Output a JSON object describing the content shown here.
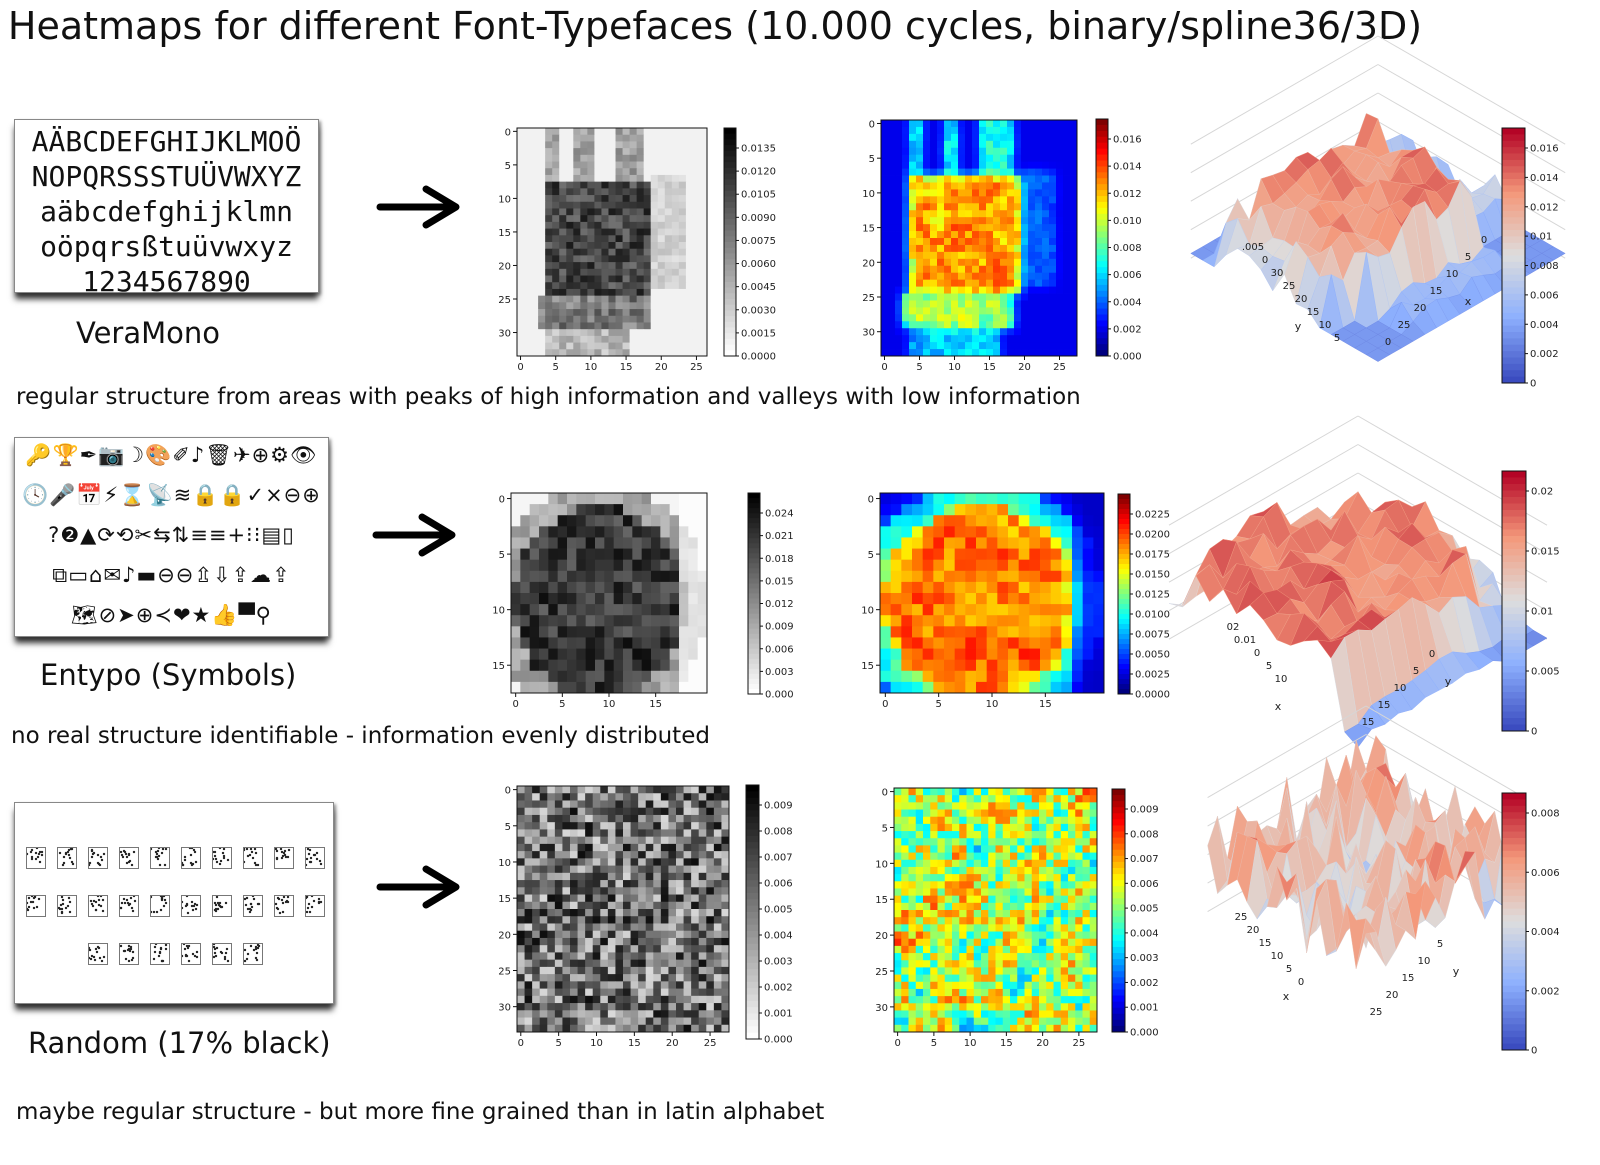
{
  "title": "Heatmaps for different Font-Typefaces (10.000 cycles, binary/spline36/3D)",
  "colors": {
    "jet": [
      "#00007f",
      "#0000ff",
      "#007fff",
      "#00ffff",
      "#7fff7f",
      "#ffff00",
      "#ff7f00",
      "#ff0000",
      "#7f0000"
    ],
    "coolwarm": [
      "#3b4cc0",
      "#8db0fe",
      "#dddddd",
      "#f4987a",
      "#b40426"
    ]
  },
  "rows": [
    {
      "name": "VeraMono",
      "caption": "regular structure from areas with peaks of high information and valleys with low information",
      "specimen_type": "latin",
      "specimen_lines": [
        "AÄBCDEFGHIJKLMOÖ",
        "NOPQRSSSTUÜVWXYZ",
        "aäbcdefghijklmn",
        "oöpqrsßtuüvwxyz",
        "1234567890"
      ],
      "chart_data": [
        {
          "type": "heatmap",
          "colormap": "gray_r",
          "rows": 34,
          "cols": 27,
          "xticks": [
            0,
            5,
            10,
            15,
            20,
            25
          ],
          "yticks": [
            0,
            5,
            10,
            15,
            20,
            25,
            30
          ],
          "colorbar_ticks": [
            "0.0135",
            "0.0120",
            "0.0105",
            "0.0090",
            "0.0075",
            "0.0060",
            "0.0045",
            "0.0030",
            "0.0015",
            "0.0000"
          ],
          "vmax": 0.0135
        },
        {
          "type": "heatmap",
          "colormap": "jet",
          "rows": 34,
          "cols": 28,
          "xticks": [
            0,
            5,
            10,
            15,
            20,
            25
          ],
          "yticks": [
            0,
            5,
            10,
            15,
            20,
            25,
            30
          ],
          "colorbar_ticks": [
            "0.016",
            "0.014",
            "0.012",
            "0.010",
            "0.008",
            "0.006",
            "0.004",
            "0.002",
            "0.000"
          ],
          "vmax": 0.016
        },
        {
          "type": "surface3d",
          "colormap": "coolwarm",
          "axis_tick_labels": [
            ".005",
            "0",
            "30",
            "25",
            "20",
            "15",
            "10",
            "5",
            "0",
            "25",
            "20",
            "15",
            "10",
            "5",
            "0"
          ],
          "axis_labels": [
            "y",
            "x"
          ],
          "colorbar_ticks": [
            "0.016",
            "0.014",
            "0.012",
            "0.01",
            "0.008",
            "0.006",
            "0.004",
            "0.002",
            "0"
          ]
        }
      ]
    },
    {
      "name": "Entypo (Symbols)",
      "caption": "no real structure identifiable - information evenly distributed",
      "specimen_type": "symbols",
      "specimen_lines": [
        "🔑🏆✒📷☽🎨✐♪🗑✈⊕⚙👁",
        "🕓🎤📅⚡⌛📡≋🔒🔒✓×⊖⊕",
        "?❷▲⟳⟲✂⇆⇅≡≡+⁝⁝▤▯",
        "⧉▭⌂✉♪▬⊖⊖⇫⇩⇪☁⇪",
        "🗺⊘➤⊕≺❤★👍▀⚲"
      ],
      "chart_data": [
        {
          "type": "heatmap",
          "colormap": "gray_r",
          "rows": 18,
          "cols": 21,
          "xticks": [
            0,
            5,
            10,
            15
          ],
          "yticks": [
            0,
            5,
            10,
            15
          ],
          "colorbar_ticks": [
            "0.024",
            "0.021",
            "0.018",
            "0.015",
            "0.012",
            "0.009",
            "0.006",
            "0.003",
            "0.000"
          ],
          "vmax": 0.024
        },
        {
          "type": "heatmap",
          "colormap": "jet",
          "rows": 18,
          "cols": 21,
          "xticks": [
            0,
            5,
            10,
            15
          ],
          "yticks": [
            0,
            5,
            10,
            15
          ],
          "colorbar_ticks": [
            "0.0225",
            "0.0200",
            "0.0175",
            "0.0150",
            "0.0125",
            "0.0100",
            "0.0075",
            "0.0050",
            "0.0025",
            "0.0000"
          ],
          "vmax": 0.0225
        },
        {
          "type": "surface3d",
          "colormap": "coolwarm",
          "axis_tick_labels": [
            "02",
            "0.01",
            "0",
            "5",
            "10",
            "15",
            "15",
            "10",
            "5",
            "0"
          ],
          "axis_labels": [
            "x",
            "y"
          ],
          "colorbar_ticks": [
            "0.02",
            "0.015",
            "0.01",
            "0.005",
            "0"
          ]
        }
      ]
    },
    {
      "name": "Random (17% black)",
      "caption": "maybe regular structure - but more fine grained than in latin alphabet",
      "specimen_type": "noise",
      "specimen_rows": [
        10,
        10,
        6
      ],
      "chart_data": [
        {
          "type": "heatmap",
          "colormap": "gray_r",
          "rows": 34,
          "cols": 28,
          "xticks": [
            0,
            5,
            10,
            15,
            20,
            25
          ],
          "yticks": [
            0,
            5,
            10,
            15,
            20,
            25,
            30
          ],
          "colorbar_ticks": [
            "0.009",
            "0.008",
            "0.007",
            "0.006",
            "0.005",
            "0.004",
            "0.003",
            "0.002",
            "0.001",
            "0.000"
          ],
          "vmax": 0.009
        },
        {
          "type": "heatmap",
          "colormap": "jet",
          "rows": 34,
          "cols": 28,
          "xticks": [
            0,
            5,
            10,
            15,
            20,
            25
          ],
          "yticks": [
            0,
            5,
            10,
            15,
            20,
            25,
            30
          ],
          "colorbar_ticks": [
            "0.009",
            "0.008",
            "0.007",
            "0.006",
            "0.005",
            "0.004",
            "0.003",
            "0.002",
            "0.001",
            "0.000"
          ],
          "vmax": 0.009
        },
        {
          "type": "surface3d",
          "colormap": "coolwarm",
          "axis_tick_labels": [
            "25",
            "20",
            "15",
            "10",
            "5",
            "0",
            "25",
            "20",
            "15",
            "10",
            "5"
          ],
          "axis_labels": [
            "x",
            "y"
          ],
          "colorbar_ticks": [
            "0.008",
            "0.006",
            "0.004",
            "0.002",
            "0"
          ]
        }
      ]
    }
  ]
}
